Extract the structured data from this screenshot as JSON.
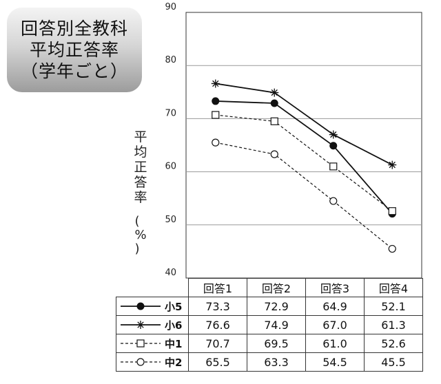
{
  "badge": {
    "line1": "回答別全教科",
    "line2": "平均正答率",
    "line3": "（学年ごと）"
  },
  "chart_data": {
    "type": "line",
    "title": "回答別全教科 平均正答率（学年ごと）",
    "ylabel": "平均正答率（%）",
    "ylabel_chars": [
      "平",
      "均",
      "正",
      "答",
      "率"
    ],
    "ylabel_unit": "（%）",
    "categories": [
      "回答1",
      "回答2",
      "回答3",
      "回答4"
    ],
    "ylim": [
      40,
      90
    ],
    "yticks": [
      40,
      50,
      60,
      70,
      80,
      90
    ],
    "grid": true,
    "series": [
      {
        "name": "小5",
        "values": [
          73.3,
          72.9,
          64.9,
          52.1
        ],
        "marker": "filled-circle",
        "line": "solid",
        "color": "#111111"
      },
      {
        "name": "小6",
        "values": [
          76.6,
          74.9,
          67.0,
          61.3
        ],
        "marker": "star",
        "line": "solid",
        "color": "#111111"
      },
      {
        "name": "中1",
        "values": [
          70.7,
          69.5,
          61.0,
          52.6
        ],
        "marker": "open-square",
        "line": "dashed",
        "color": "#111111"
      },
      {
        "name": "中2",
        "values": [
          65.5,
          63.3,
          54.5,
          45.5
        ],
        "marker": "open-circle",
        "line": "dashed",
        "color": "#111111"
      }
    ]
  }
}
